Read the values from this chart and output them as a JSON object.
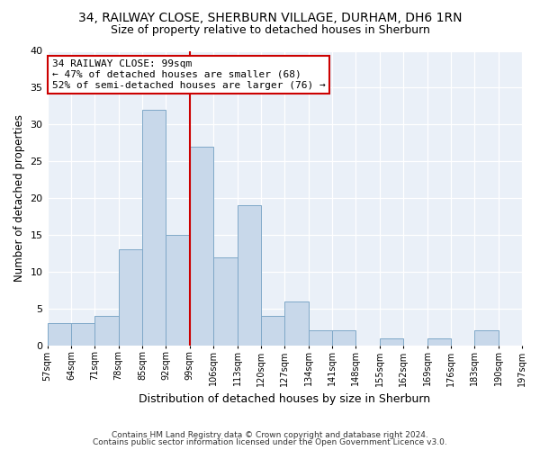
{
  "title": "34, RAILWAY CLOSE, SHERBURN VILLAGE, DURHAM, DH6 1RN",
  "subtitle": "Size of property relative to detached houses in Sherburn",
  "xlabel": "Distribution of detached houses by size in Sherburn",
  "ylabel": "Number of detached properties",
  "bins": [
    57,
    64,
    71,
    78,
    85,
    92,
    99,
    106,
    113,
    120,
    127,
    134,
    141,
    148,
    155,
    162,
    169,
    176,
    183,
    190,
    197
  ],
  "counts": [
    3,
    3,
    4,
    13,
    32,
    15,
    27,
    12,
    19,
    4,
    6,
    2,
    2,
    0,
    1,
    0,
    1,
    0,
    2,
    0
  ],
  "bar_color": "#c8d8ea",
  "bar_edge_color": "#7fa8c8",
  "property_value": 99,
  "vline_color": "#cc0000",
  "annotation_text": "34 RAILWAY CLOSE: 99sqm\n← 47% of detached houses are smaller (68)\n52% of semi-detached houses are larger (76) →",
  "annotation_box_facecolor": "#ffffff",
  "annotation_box_edge": "#cc0000",
  "ylim": [
    0,
    40
  ],
  "background_color": "#eaf0f8",
  "footer_line1": "Contains HM Land Registry data © Crown copyright and database right 2024.",
  "footer_line2": "Contains public sector information licensed under the Open Government Licence v3.0.",
  "tick_labels": [
    "57sqm",
    "64sqm",
    "71sqm",
    "78sqm",
    "85sqm",
    "92sqm",
    "99sqm",
    "106sqm",
    "113sqm",
    "120sqm",
    "127sqm",
    "134sqm",
    "141sqm",
    "148sqm",
    "155sqm",
    "162sqm",
    "169sqm",
    "176sqm",
    "183sqm",
    "190sqm",
    "197sqm"
  ]
}
